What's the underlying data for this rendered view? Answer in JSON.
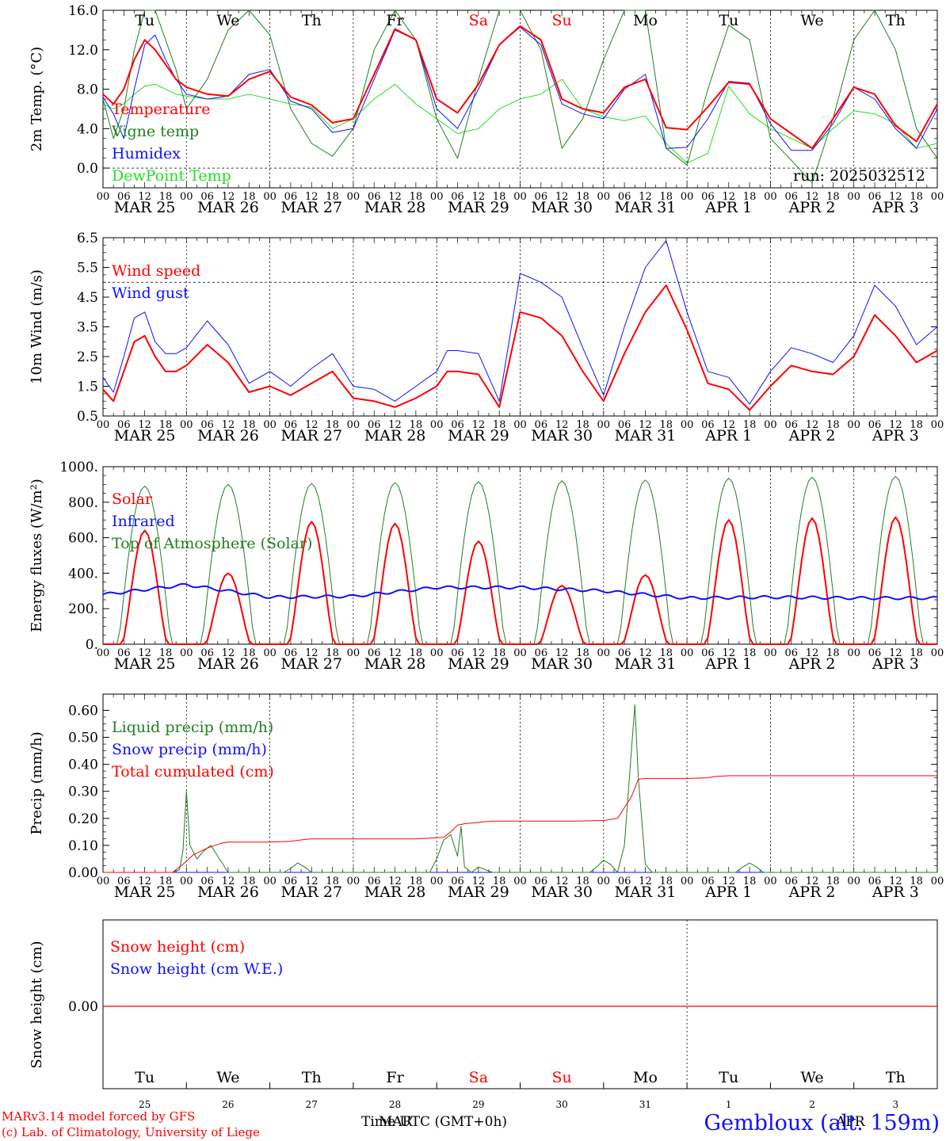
{
  "run_label": "run: 2025032512",
  "credits": {
    "line1": "MARv3.14 model forced by GFS",
    "line2": "(c) Lab. of Climatology, University of Liege"
  },
  "station": "Gembloux (alt. 159m)",
  "x_axis_title": "Time UTC (GMT+0h)",
  "bottom_month_labels": [
    "MAR",
    "APR"
  ],
  "colors": {
    "red": "#ff0000",
    "blue": "#1010ff",
    "green": "#208020",
    "light_green": "#20e020",
    "black": "#000000"
  },
  "chart_data": [
    {
      "type": "line",
      "ylabel": "2m Temp. (°C)",
      "ylim": [
        -2,
        16
      ],
      "yticks": [
        "0.0",
        "4.0",
        "8.0",
        "12.0",
        "16.0"
      ],
      "ytick_values": [
        0,
        4,
        8,
        12,
        16
      ],
      "reference_line": 0,
      "x_unit": "hours since Mar 25 00 UTC",
      "xlim": [
        0,
        240
      ],
      "day_names": [
        "Tu",
        "We",
        "Th",
        "Fr",
        "Sa",
        "Su",
        "Mo",
        "Tu",
        "We",
        "Th"
      ],
      "weekend_days": [
        4,
        5
      ],
      "hour_ticks": [
        "00",
        "06",
        "12",
        "18"
      ],
      "date_labels": [
        "MAR 25",
        "MAR 26",
        "MAR 27",
        "MAR 28",
        "MAR 29",
        "MAR 30",
        "MAR 31",
        "APR  1",
        "APR  2",
        "APR  3"
      ],
      "legend": [
        {
          "label": "Temperature",
          "color": "#ff0000"
        },
        {
          "label": "Vigne temp",
          "color": "#208020"
        },
        {
          "label": "Humidex",
          "color": "#1010ff"
        },
        {
          "label": "DewPoint Temp",
          "color": "#20e020"
        }
      ],
      "series": [
        {
          "name": "Temperature",
          "color": "#ff0000",
          "width": 2,
          "x": [
            0,
            3,
            6,
            9,
            12,
            15,
            18,
            21,
            24,
            30,
            36,
            42,
            48,
            54,
            60,
            66,
            72,
            78,
            84,
            90,
            96,
            102,
            108,
            114,
            120,
            126,
            132,
            138,
            144,
            150,
            156,
            162,
            168,
            174,
            180,
            186,
            192,
            198,
            204,
            210,
            216,
            222,
            228,
            234,
            240
          ],
          "values": [
            7.5,
            6.5,
            8.0,
            11.0,
            13.0,
            12.0,
            10.5,
            9.0,
            8.2,
            7.5,
            7.3,
            9.0,
            9.8,
            7.2,
            6.4,
            4.6,
            5.0,
            9.5,
            14.1,
            13.0,
            7.0,
            5.6,
            8.5,
            12.5,
            14.4,
            13.0,
            7.0,
            6.0,
            5.6,
            8.2,
            9.0,
            4.1,
            3.9,
            6.2,
            8.7,
            8.5,
            5.0,
            3.5,
            2.0,
            5.0,
            8.2,
            7.5,
            4.3,
            2.7,
            6.5
          ]
        },
        {
          "name": "Vigne temp",
          "color": "#208020",
          "width": 1,
          "x": [
            0,
            3,
            6,
            9,
            12,
            15,
            18,
            21,
            24,
            30,
            36,
            42,
            48,
            54,
            60,
            66,
            72,
            78,
            84,
            90,
            96,
            102,
            108,
            114,
            120,
            126,
            132,
            138,
            144,
            150,
            156,
            162,
            168,
            174,
            180,
            186,
            192,
            198,
            204,
            210,
            216,
            222,
            228,
            234,
            240
          ],
          "values": [
            7.0,
            3.0,
            6.0,
            12.0,
            16.0,
            16.0,
            13.0,
            10.0,
            6.0,
            9.0,
            14.0,
            16.0,
            13.5,
            6.0,
            2.5,
            1.2,
            4.0,
            12.0,
            16.0,
            13.0,
            5.0,
            1.0,
            9.0,
            16.0,
            16.0,
            12.0,
            2.0,
            5.0,
            11.0,
            16.0,
            16.0,
            2.0,
            0.3,
            8.0,
            14.5,
            13.0,
            3.0,
            0.8,
            -1.5,
            5.0,
            13.0,
            16.0,
            12.0,
            4.0,
            1.0
          ]
        },
        {
          "name": "Humidex",
          "color": "#1010ff",
          "width": 1,
          "x": [
            0,
            3,
            6,
            9,
            12,
            15,
            18,
            21,
            24,
            30,
            36,
            42,
            48,
            54,
            60,
            66,
            72,
            78,
            84,
            90,
            96,
            102,
            108,
            114,
            120,
            126,
            132,
            138,
            144,
            150,
            156,
            162,
            168,
            174,
            180,
            186,
            192,
            198,
            204,
            210,
            216,
            222,
            228,
            234,
            240
          ],
          "values": [
            7.2,
            5.5,
            3.0,
            8.0,
            12.5,
            13.5,
            11.0,
            9.0,
            7.5,
            7.0,
            7.3,
            9.5,
            10.0,
            6.8,
            6.0,
            3.6,
            4.0,
            9.0,
            14.0,
            13.0,
            6.0,
            4.0,
            8.0,
            12.5,
            14.3,
            12.5,
            6.5,
            5.5,
            5.0,
            8.0,
            9.5,
            2.0,
            2.1,
            5.0,
            8.8,
            8.6,
            4.5,
            1.8,
            1.8,
            4.5,
            8.2,
            7.0,
            4.0,
            2.0,
            6.0
          ]
        },
        {
          "name": "DewPoint Temp",
          "color": "#20e020",
          "width": 1,
          "x": [
            0,
            3,
            6,
            9,
            12,
            15,
            18,
            21,
            24,
            30,
            36,
            42,
            48,
            54,
            60,
            66,
            72,
            78,
            84,
            90,
            96,
            102,
            108,
            114,
            120,
            126,
            132,
            138,
            144,
            150,
            156,
            162,
            168,
            174,
            180,
            186,
            192,
            198,
            204,
            210,
            216,
            222,
            228,
            234,
            240
          ],
          "values": [
            6.5,
            6.0,
            6.5,
            7.5,
            8.3,
            8.5,
            8.0,
            7.5,
            7.3,
            7.0,
            7.0,
            7.5,
            7.0,
            6.5,
            6.2,
            4.0,
            5.0,
            7.0,
            8.5,
            6.5,
            5.0,
            3.5,
            4.0,
            6.0,
            7.0,
            7.5,
            9.0,
            6.0,
            5.2,
            4.8,
            5.3,
            2.5,
            0.5,
            1.5,
            8.3,
            5.5,
            4.0,
            3.0,
            2.0,
            4.0,
            5.8,
            5.5,
            4.5,
            2.0,
            2.5
          ]
        }
      ]
    },
    {
      "type": "line",
      "ylabel": "10m Wind (m/s)",
      "ylim": [
        0.5,
        6.5
      ],
      "yticks": [
        "0.5",
        "1.5",
        "2.5",
        "3.5",
        "4.5",
        "5.5",
        "6.5"
      ],
      "ytick_values": [
        0.5,
        1.5,
        2.5,
        3.5,
        4.5,
        5.5,
        6.5
      ],
      "reference_line": 5.0,
      "xlim": [
        0,
        240
      ],
      "hour_ticks": [
        "00",
        "06",
        "12",
        "18"
      ],
      "date_labels": [
        "MAR 25",
        "MAR 26",
        "MAR 27",
        "MAR 28",
        "MAR 29",
        "MAR 30",
        "MAR 31",
        "APR  1",
        "APR  2",
        "APR  3"
      ],
      "legend": [
        {
          "label": "Wind speed",
          "color": "#ff0000"
        },
        {
          "label": "Wind gust",
          "color": "#1010ff"
        }
      ],
      "series": [
        {
          "name": "Wind speed",
          "color": "#ff0000",
          "width": 2,
          "x": [
            0,
            3,
            6,
            9,
            12,
            15,
            18,
            21,
            24,
            30,
            36,
            42,
            48,
            54,
            60,
            66,
            72,
            78,
            84,
            90,
            96,
            99,
            102,
            108,
            114,
            120,
            126,
            132,
            138,
            144,
            150,
            156,
            162,
            168,
            174,
            180,
            186,
            192,
            198,
            204,
            210,
            216,
            222,
            228,
            234,
            240
          ],
          "values": [
            1.4,
            1.0,
            2.0,
            3.0,
            3.2,
            2.5,
            2.0,
            2.0,
            2.2,
            2.9,
            2.3,
            1.3,
            1.5,
            1.2,
            1.6,
            2.0,
            1.1,
            1.0,
            0.8,
            1.1,
            1.5,
            2.0,
            2.0,
            1.9,
            0.8,
            4.0,
            3.8,
            3.2,
            2.0,
            1.0,
            2.6,
            4.0,
            4.9,
            3.4,
            1.6,
            1.4,
            0.7,
            1.5,
            2.2,
            2.0,
            1.9,
            2.5,
            3.9,
            3.2,
            2.3,
            2.7
          ]
        },
        {
          "name": "Wind gust",
          "color": "#1010ff",
          "width": 1,
          "x": [
            0,
            3,
            6,
            9,
            12,
            15,
            18,
            21,
            24,
            30,
            36,
            42,
            48,
            54,
            60,
            66,
            72,
            78,
            84,
            90,
            96,
            99,
            102,
            108,
            114,
            120,
            126,
            132,
            138,
            144,
            150,
            156,
            162,
            168,
            174,
            180,
            186,
            192,
            198,
            204,
            210,
            216,
            222,
            228,
            234,
            240
          ],
          "values": [
            1.8,
            1.3,
            2.5,
            3.8,
            4.0,
            3.0,
            2.6,
            2.6,
            2.8,
            3.7,
            2.9,
            1.6,
            2.0,
            1.5,
            2.1,
            2.6,
            1.5,
            1.4,
            1.0,
            1.5,
            2.0,
            2.7,
            2.7,
            2.6,
            1.0,
            5.3,
            5.0,
            4.5,
            2.8,
            1.2,
            3.5,
            5.5,
            6.4,
            4.0,
            2.0,
            1.8,
            0.9,
            2.0,
            2.8,
            2.6,
            2.3,
            3.2,
            4.9,
            4.2,
            2.9,
            3.5
          ]
        }
      ]
    },
    {
      "type": "line",
      "ylabel": "Energy fluxes (W/m²)",
      "ylim": [
        0,
        1000
      ],
      "yticks": [
        "0.",
        "200.",
        "400.",
        "600.",
        "800.",
        "1000."
      ],
      "ytick_values": [
        0,
        200,
        400,
        600,
        800,
        1000
      ],
      "xlim": [
        0,
        240
      ],
      "hour_ticks": [
        "00",
        "06",
        "12",
        "18"
      ],
      "date_labels": [
        "MAR 25",
        "MAR 26",
        "MAR 27",
        "MAR 28",
        "MAR 29",
        "MAR 30",
        "MAR 31",
        "APR  1",
        "APR  2",
        "APR  3"
      ],
      "legend": [
        {
          "label": "Solar",
          "color": "#ff0000"
        },
        {
          "label": "Infrared",
          "color": "#1010ff"
        },
        {
          "label": "Top of Atmosphere (Solar)",
          "color": "#208020"
        }
      ],
      "daily_toa_peak": [
        890,
        900,
        905,
        910,
        915,
        920,
        925,
        935,
        940,
        945
      ],
      "daily_solar_peak": [
        640,
        400,
        690,
        680,
        580,
        330,
        390,
        700,
        710,
        715
      ],
      "infrared_daily_mean": [
        280,
        335,
        265,
        270,
        320,
        320,
        300,
        260,
        265,
        260
      ]
    },
    {
      "type": "line",
      "ylabel": "Precip (mm/h)",
      "ylim": [
        0,
        0.66
      ],
      "yticks": [
        "0.00",
        "0.10",
        "0.20",
        "0.30",
        "0.40",
        "0.50",
        "0.60"
      ],
      "ytick_values": [
        0,
        0.1,
        0.2,
        0.3,
        0.4,
        0.5,
        0.6
      ],
      "xlim": [
        0,
        240
      ],
      "hour_ticks": [
        "00",
        "06",
        "12",
        "18"
      ],
      "date_labels": [
        "MAR 25",
        "MAR 26",
        "MAR 27",
        "MAR 28",
        "MAR 29",
        "MAR 30",
        "MAR 31",
        "APR  1",
        "APR  2",
        "APR  3"
      ],
      "legend": [
        {
          "label": "Liquid precip (mm/h)",
          "color": "#208020"
        },
        {
          "label": "Snow precip (mm/h)",
          "color": "#1010ff"
        },
        {
          "label": "Total cumulated (cm)",
          "color": "#ff0000"
        }
      ],
      "series": [
        {
          "name": "Liquid precip (mm/h)",
          "color": "#208020",
          "width": 1,
          "x": [
            0,
            20,
            22,
            23,
            24,
            25,
            27,
            29,
            31,
            34,
            36,
            52,
            54,
            56,
            58,
            60,
            94,
            96,
            98,
            100,
            102,
            103,
            104,
            106,
            108,
            110,
            112,
            140,
            142,
            144,
            146,
            148,
            150,
            152,
            153,
            154,
            156,
            158,
            160,
            182,
            184,
            186,
            188,
            190,
            240
          ],
          "values": [
            0,
            0,
            0.01,
            0.08,
            0.3,
            0.1,
            0.05,
            0.08,
            0.1,
            0.04,
            0,
            0,
            0.015,
            0.035,
            0.02,
            0,
            0,
            0.05,
            0.12,
            0.14,
            0.06,
            0.17,
            0.02,
            0,
            0.02,
            0.01,
            0,
            0,
            0.02,
            0.045,
            0.03,
            0,
            0.1,
            0.45,
            0.62,
            0.35,
            0.03,
            0,
            0,
            0,
            0.02,
            0.035,
            0.02,
            0,
            0
          ]
        },
        {
          "name": "Snow precip (mm/h)",
          "color": "#1010ff",
          "width": 1,
          "x": [
            0,
            240
          ],
          "values": [
            0,
            0
          ]
        },
        {
          "name": "Total cumulated (cm)",
          "color": "#ff0000",
          "width": 1,
          "x": [
            0,
            20,
            23,
            26,
            30,
            34,
            36,
            48,
            54,
            58,
            60,
            72,
            90,
            98,
            100,
            102,
            104,
            108,
            112,
            136,
            144,
            148,
            152,
            154,
            156,
            168,
            174,
            176,
            180,
            240
          ],
          "values": [
            0,
            0,
            0.03,
            0.065,
            0.09,
            0.108,
            0.112,
            0.112,
            0.115,
            0.122,
            0.124,
            0.124,
            0.124,
            0.13,
            0.15,
            0.175,
            0.18,
            0.185,
            0.19,
            0.19,
            0.192,
            0.2,
            0.28,
            0.345,
            0.348,
            0.348,
            0.35,
            0.355,
            0.358,
            0.358
          ]
        }
      ]
    },
    {
      "type": "line",
      "ylabel": "Snow height (cm)",
      "yticks": [
        "0.00"
      ],
      "ytick_values": [
        0
      ],
      "xlim": [
        0,
        240
      ],
      "day_names": [
        "Tu",
        "We",
        "Th",
        "Fr",
        "Sa",
        "Su",
        "Mo",
        "Tu",
        "We",
        "Th"
      ],
      "weekend_days": [
        4,
        5
      ],
      "day_numbers": [
        "25",
        "26",
        "27",
        "28",
        "29",
        "30",
        "31",
        "1",
        "2",
        "3"
      ],
      "legend": [
        {
          "label": "Snow height (cm)",
          "color": "#ff0000"
        },
        {
          "label": "Snow height (cm W.E.)",
          "color": "#1010ff"
        }
      ],
      "series": [
        {
          "name": "Snow height (cm)",
          "color": "#ff0000",
          "width": 1,
          "x": [
            0,
            240
          ],
          "values": [
            0,
            0
          ]
        }
      ]
    }
  ]
}
